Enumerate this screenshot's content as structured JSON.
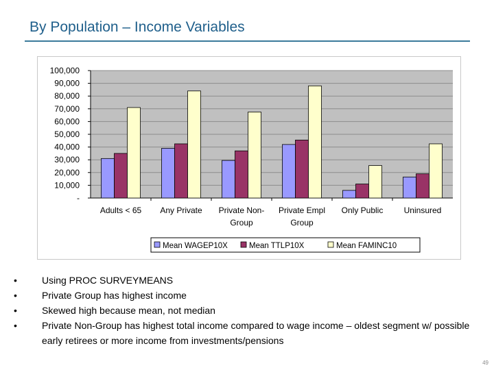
{
  "slide": {
    "title": "By Population – Income Variables",
    "page_number": "49"
  },
  "bullets": [
    "Using PROC SURVEYMEANS",
    "Private Group has highest income",
    "Skewed high because mean, not median",
    "Private Non-Group has highest total income compared to wage income – oldest segment w/ possible early retirees or more income from investments/pensions"
  ],
  "chart_data": {
    "type": "bar",
    "categories": [
      [
        "Adults < 65"
      ],
      [
        "Any Private"
      ],
      [
        "Private Non-",
        "Group"
      ],
      [
        "Private Empl",
        "Group"
      ],
      [
        "Only Public"
      ],
      [
        "Uninsured"
      ]
    ],
    "series": [
      {
        "name": "Mean WAGEP10X",
        "color": "#9999ff",
        "values": [
          31000,
          39000,
          29500,
          42000,
          6000,
          16500
        ]
      },
      {
        "name": "Mean TTLP10X",
        "color": "#993366",
        "values": [
          35000,
          42500,
          37000,
          45500,
          11000,
          19000
        ]
      },
      {
        "name": "Mean FAMINC10",
        "color": "#ffffcc",
        "values": [
          71000,
          84000,
          67500,
          88000,
          25500,
          42500
        ]
      }
    ],
    "y_ticks": [
      "-",
      "10,000",
      "20,000",
      "30,000",
      "40,000",
      "50,000",
      "60,000",
      "70,000",
      "80,000",
      "90,000",
      "100,000"
    ],
    "ylim": [
      0,
      100000
    ],
    "ytick_step": 10000,
    "title": "",
    "xlabel": "",
    "ylabel": "",
    "legend_position": "bottom",
    "plot_background": "#c0c0c0"
  }
}
